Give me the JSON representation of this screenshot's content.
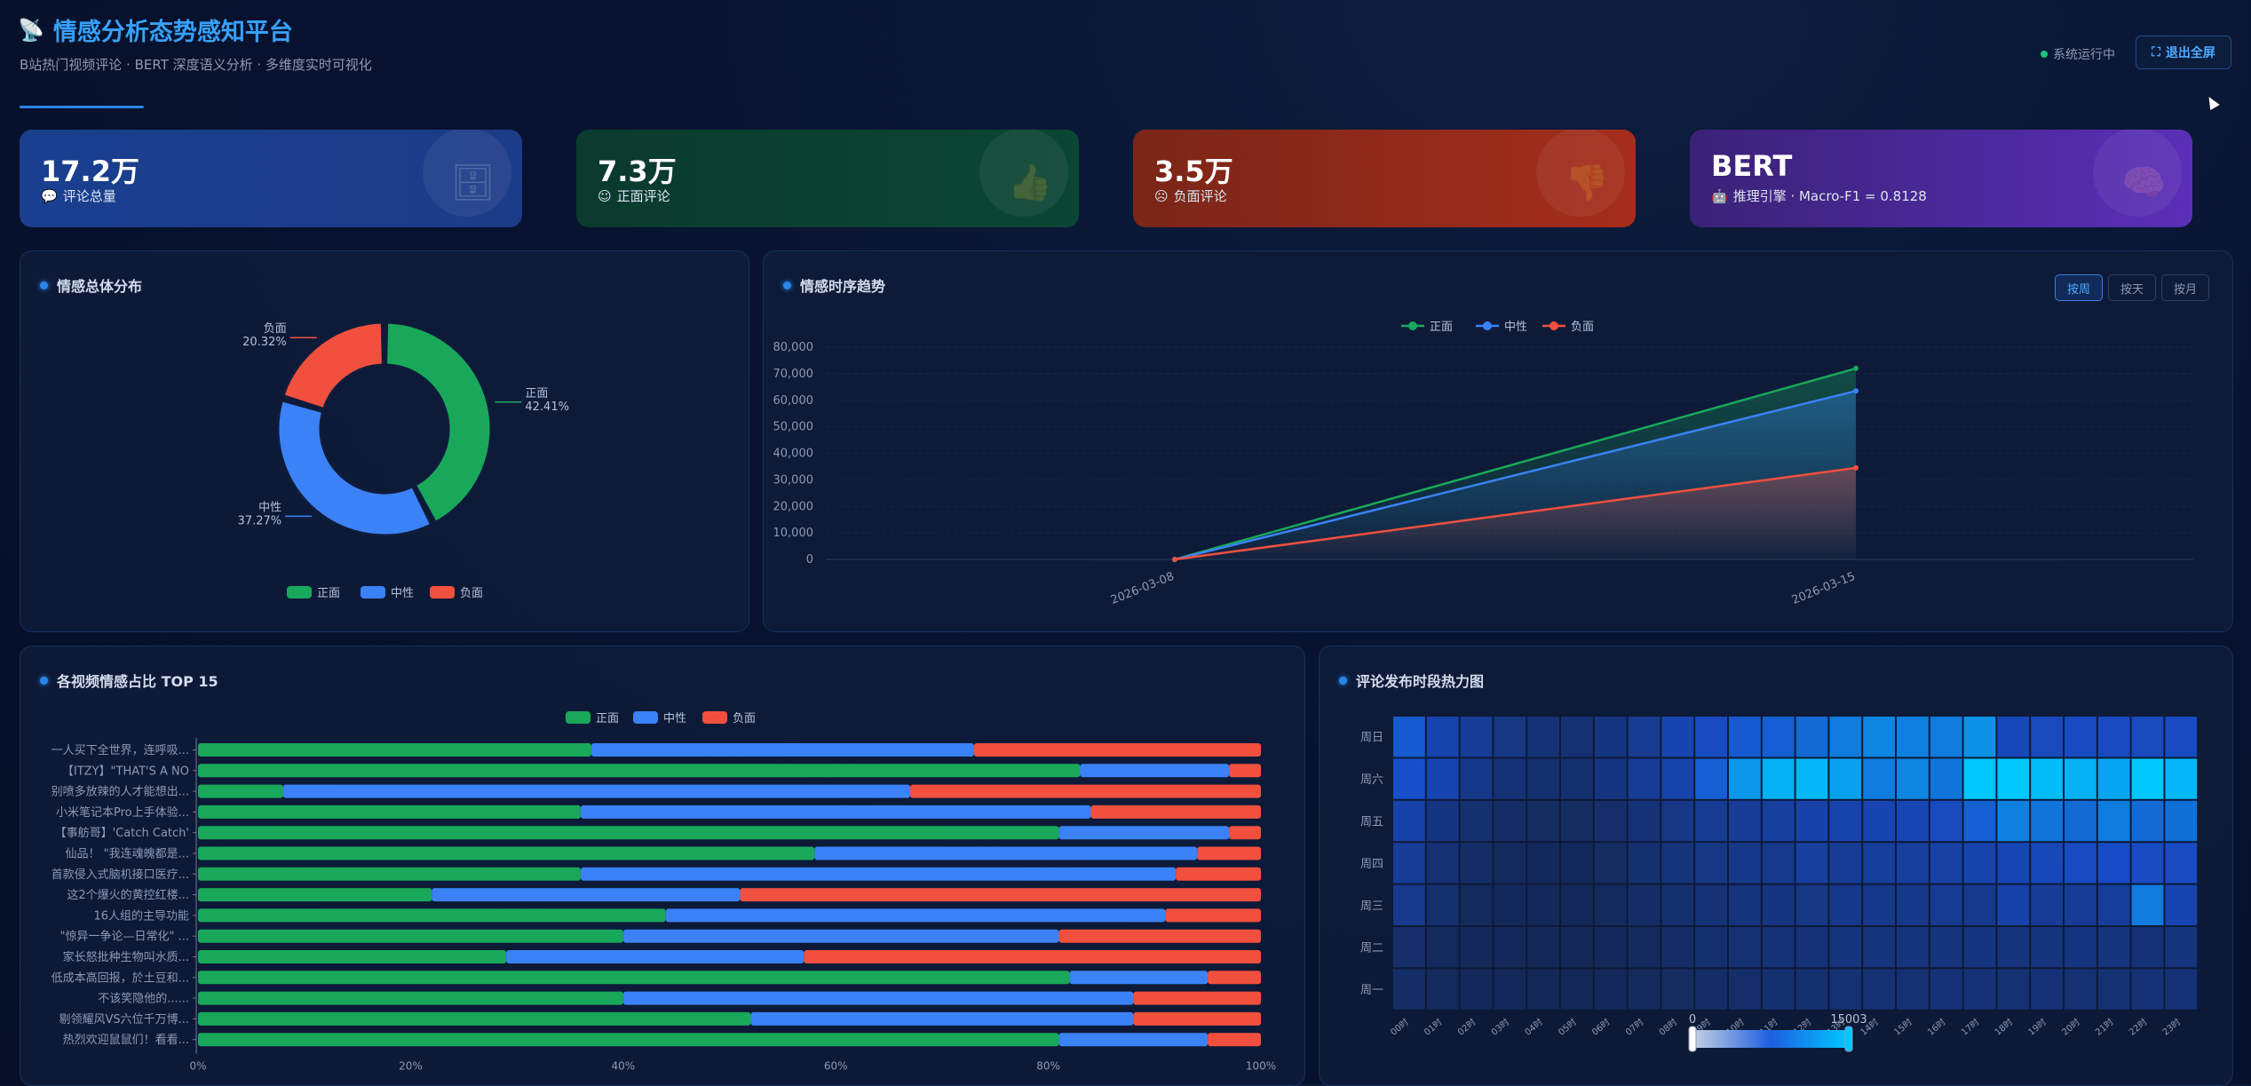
{
  "header": {
    "title": "情感分析态势感知平台",
    "subtitle": "B站热门视频评论 · BERT 深度语义分析 · 多维度实时可视化",
    "status": "系统运行中",
    "fullscreen_label": "退出全屏"
  },
  "kpis": [
    {
      "value": "17.2万",
      "label": "评论总量",
      "icon": "database-icon"
    },
    {
      "value": "7.3万",
      "label": "正面评论",
      "icon": "thumbs-up-icon"
    },
    {
      "value": "3.5万",
      "label": "负面评论",
      "icon": "thumbs-down-icon"
    },
    {
      "value": "BERT",
      "label": "推理引擎 · Macro-F1 = 0.8128",
      "icon": "brain-icon"
    }
  ],
  "panels": {
    "donut_title": "情感总体分布",
    "trend_title": "情感时序趋势",
    "bars_title": "各视频情感占比 TOP 15",
    "heat_title": "评论发布时段热力图",
    "trend_buttons": [
      "按周",
      "按天",
      "按月"
    ]
  },
  "colors": {
    "positive": "#19a85a",
    "neutral": "#3b82f6",
    "negative": "#f2503f",
    "accent": "#2a86e6"
  },
  "chart_data": [
    {
      "type": "pie",
      "labels": [
        "正面",
        "中性",
        "负面"
      ],
      "values": [
        42.41,
        37.27,
        20.32
      ],
      "value_labels": [
        "42.41%",
        "37.27%",
        "20.32%"
      ],
      "legend": [
        "正面",
        "中性",
        "负面"
      ],
      "legend_position": "bottom"
    },
    {
      "type": "area",
      "x": [
        "2026-03-08",
        "2026-03-15"
      ],
      "x_tick_labels": [
        "2026-03-08",
        "2026-03-15"
      ],
      "series": [
        {
          "name": "正面",
          "values": [
            0,
            72000
          ]
        },
        {
          "name": "中性",
          "values": [
            0,
            63500
          ]
        },
        {
          "name": "负面",
          "values": [
            0,
            34500
          ]
        }
      ],
      "y_ticks": [
        "0",
        "10,000",
        "20,000",
        "30,000",
        "40,000",
        "50,000",
        "60,000",
        "70,000",
        "80,000"
      ],
      "ylim": [
        0,
        80000
      ],
      "legend_position": "top"
    },
    {
      "type": "bar",
      "orientation": "horizontal",
      "stacked": true,
      "categories": [
        "一人买下全世界，连呼吸...",
        "【ITZY】\"THAT'S A NO",
        "别喷多放辣的人才能想出...",
        "小米笔记本Pro上手体验...",
        "【事舫哥】'Catch Catch'",
        "仙品！ \"我连魂魄都是...",
        "首款侵入式脑机接口医疗...",
        "这2个爆火的黄控红楼...",
        "16人组的主导功能",
        "\"惊异一争论—日常化\" ...",
        "家长怒批种生物叫水质...",
        "低成本高回报，於土豆和...",
        "不该笑隐他的......",
        "剔领耀风VS六位千万博...",
        "热烈欢迎鼠鼠们！看看..."
      ],
      "series": [
        {
          "name": "正面",
          "values": [
            37,
            83,
            8,
            36,
            81,
            58,
            36,
            22,
            44,
            40,
            29,
            82,
            40,
            52,
            81
          ]
        },
        {
          "name": "中性",
          "values": [
            36,
            14,
            59,
            48,
            16,
            36,
            56,
            29,
            47,
            41,
            28,
            13,
            48,
            36,
            14
          ]
        },
        {
          "name": "负面",
          "values": [
            27,
            3,
            33,
            16,
            3,
            6,
            8,
            49,
            9,
            19,
            43,
            5,
            12,
            12,
            5
          ]
        }
      ],
      "x_tick_labels": [
        "0%",
        "20%",
        "40%",
        "60%",
        "80%",
        "100%"
      ],
      "xlim": [
        0,
        100
      ],
      "legend_position": "top"
    },
    {
      "type": "heatmap",
      "x": [
        "00时",
        "01时",
        "02时",
        "03时",
        "04时",
        "05时",
        "06时",
        "07时",
        "08时",
        "09时",
        "10时",
        "11时",
        "12时",
        "13时",
        "14时",
        "15时",
        "16时",
        "17时",
        "18时",
        "19时",
        "20时",
        "21时",
        "22时",
        "23时"
      ],
      "y": [
        "周一",
        "周二",
        "周三",
        "周四",
        "周五",
        "周六",
        "周日"
      ],
      "values": [
        [
          500,
          300,
          200,
          200,
          150,
          150,
          200,
          300,
          400,
          500,
          600,
          700,
          700,
          800,
          800,
          800,
          900,
          900,
          800,
          900,
          800,
          800,
          900,
          900
        ],
        [
          600,
          300,
          200,
          200,
          150,
          150,
          200,
          300,
          500,
          700,
          800,
          900,
          900,
          1000,
          1000,
          1000,
          1000,
          1100,
          1000,
          1000,
          1100,
          1000,
          900,
          1000
        ],
        [
          1400,
          700,
          300,
          250,
          200,
          200,
          300,
          500,
          700,
          900,
          1000,
          1100,
          1200,
          1300,
          1300,
          1300,
          1500,
          1400,
          2000,
          1600,
          1600,
          1700,
          3600,
          2200
        ],
        [
          1600,
          800,
          500,
          300,
          250,
          250,
          400,
          700,
          1000,
          1200,
          1300,
          1400,
          1800,
          1600,
          1700,
          1800,
          1900,
          2100,
          2300,
          2400,
          2600,
          2700,
          2600,
          2600
        ],
        [
          2000,
          1100,
          700,
          500,
          400,
          400,
          600,
          900,
          1200,
          1500,
          1600,
          1800,
          2000,
          2100,
          2200,
          2300,
          2500,
          3100,
          3700,
          3500,
          3300,
          3600,
          3300,
          3400
        ],
        [
          2800,
          2200,
          1300,
          900,
          700,
          700,
          1100,
          1600,
          2100,
          3100,
          4100,
          4600,
          4700,
          4300,
          3600,
          3800,
          3500,
          5003,
          5003,
          4800,
          4600,
          4400,
          5000,
          4700
        ],
        [
          3000,
          2100,
          1600,
          1200,
          900,
          800,
          1100,
          1500,
          2200,
          2600,
          3000,
          3100,
          3300,
          3600,
          3800,
          3700,
          3600,
          4000,
          2400,
          2500,
          2600,
          2600,
          2500,
          2600
        ]
      ],
      "visual_map": {
        "min": "0",
        "max": "15003"
      }
    }
  ]
}
